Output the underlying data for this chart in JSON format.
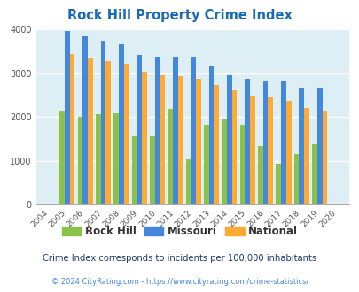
{
  "title": "Rock Hill Property Crime Index",
  "years": [
    2004,
    2005,
    2006,
    2007,
    2008,
    2009,
    2010,
    2011,
    2012,
    2013,
    2014,
    2015,
    2016,
    2017,
    2018,
    2019,
    2020
  ],
  "rock_hill": [
    0,
    2130,
    2000,
    2070,
    2080,
    1560,
    1560,
    2180,
    1040,
    1810,
    1960,
    1820,
    1330,
    930,
    1160,
    1370,
    0
  ],
  "missouri": [
    0,
    3960,
    3840,
    3730,
    3650,
    3410,
    3380,
    3370,
    3370,
    3150,
    2940,
    2870,
    2820,
    2830,
    2650,
    2640,
    0
  ],
  "national": [
    0,
    3430,
    3360,
    3280,
    3210,
    3040,
    2950,
    2920,
    2870,
    2730,
    2600,
    2490,
    2450,
    2360,
    2200,
    2120,
    0
  ],
  "rock_hill_color": "#8bc34a",
  "missouri_color": "#4488dd",
  "national_color": "#ffaa33",
  "bg_color": "#deeef5",
  "ylim": [
    0,
    4000
  ],
  "yticks": [
    0,
    1000,
    2000,
    3000,
    4000
  ],
  "subtitle": "Crime Index corresponds to incidents per 100,000 inhabitants",
  "footer": "© 2024 CityRating.com - https://www.cityrating.com/crime-statistics/",
  "title_color": "#1a6bb5",
  "subtitle_color": "#1a3a6b",
  "footer_color": "#4488dd",
  "legend_labels": [
    "Rock Hill",
    "Missouri",
    "National"
  ]
}
